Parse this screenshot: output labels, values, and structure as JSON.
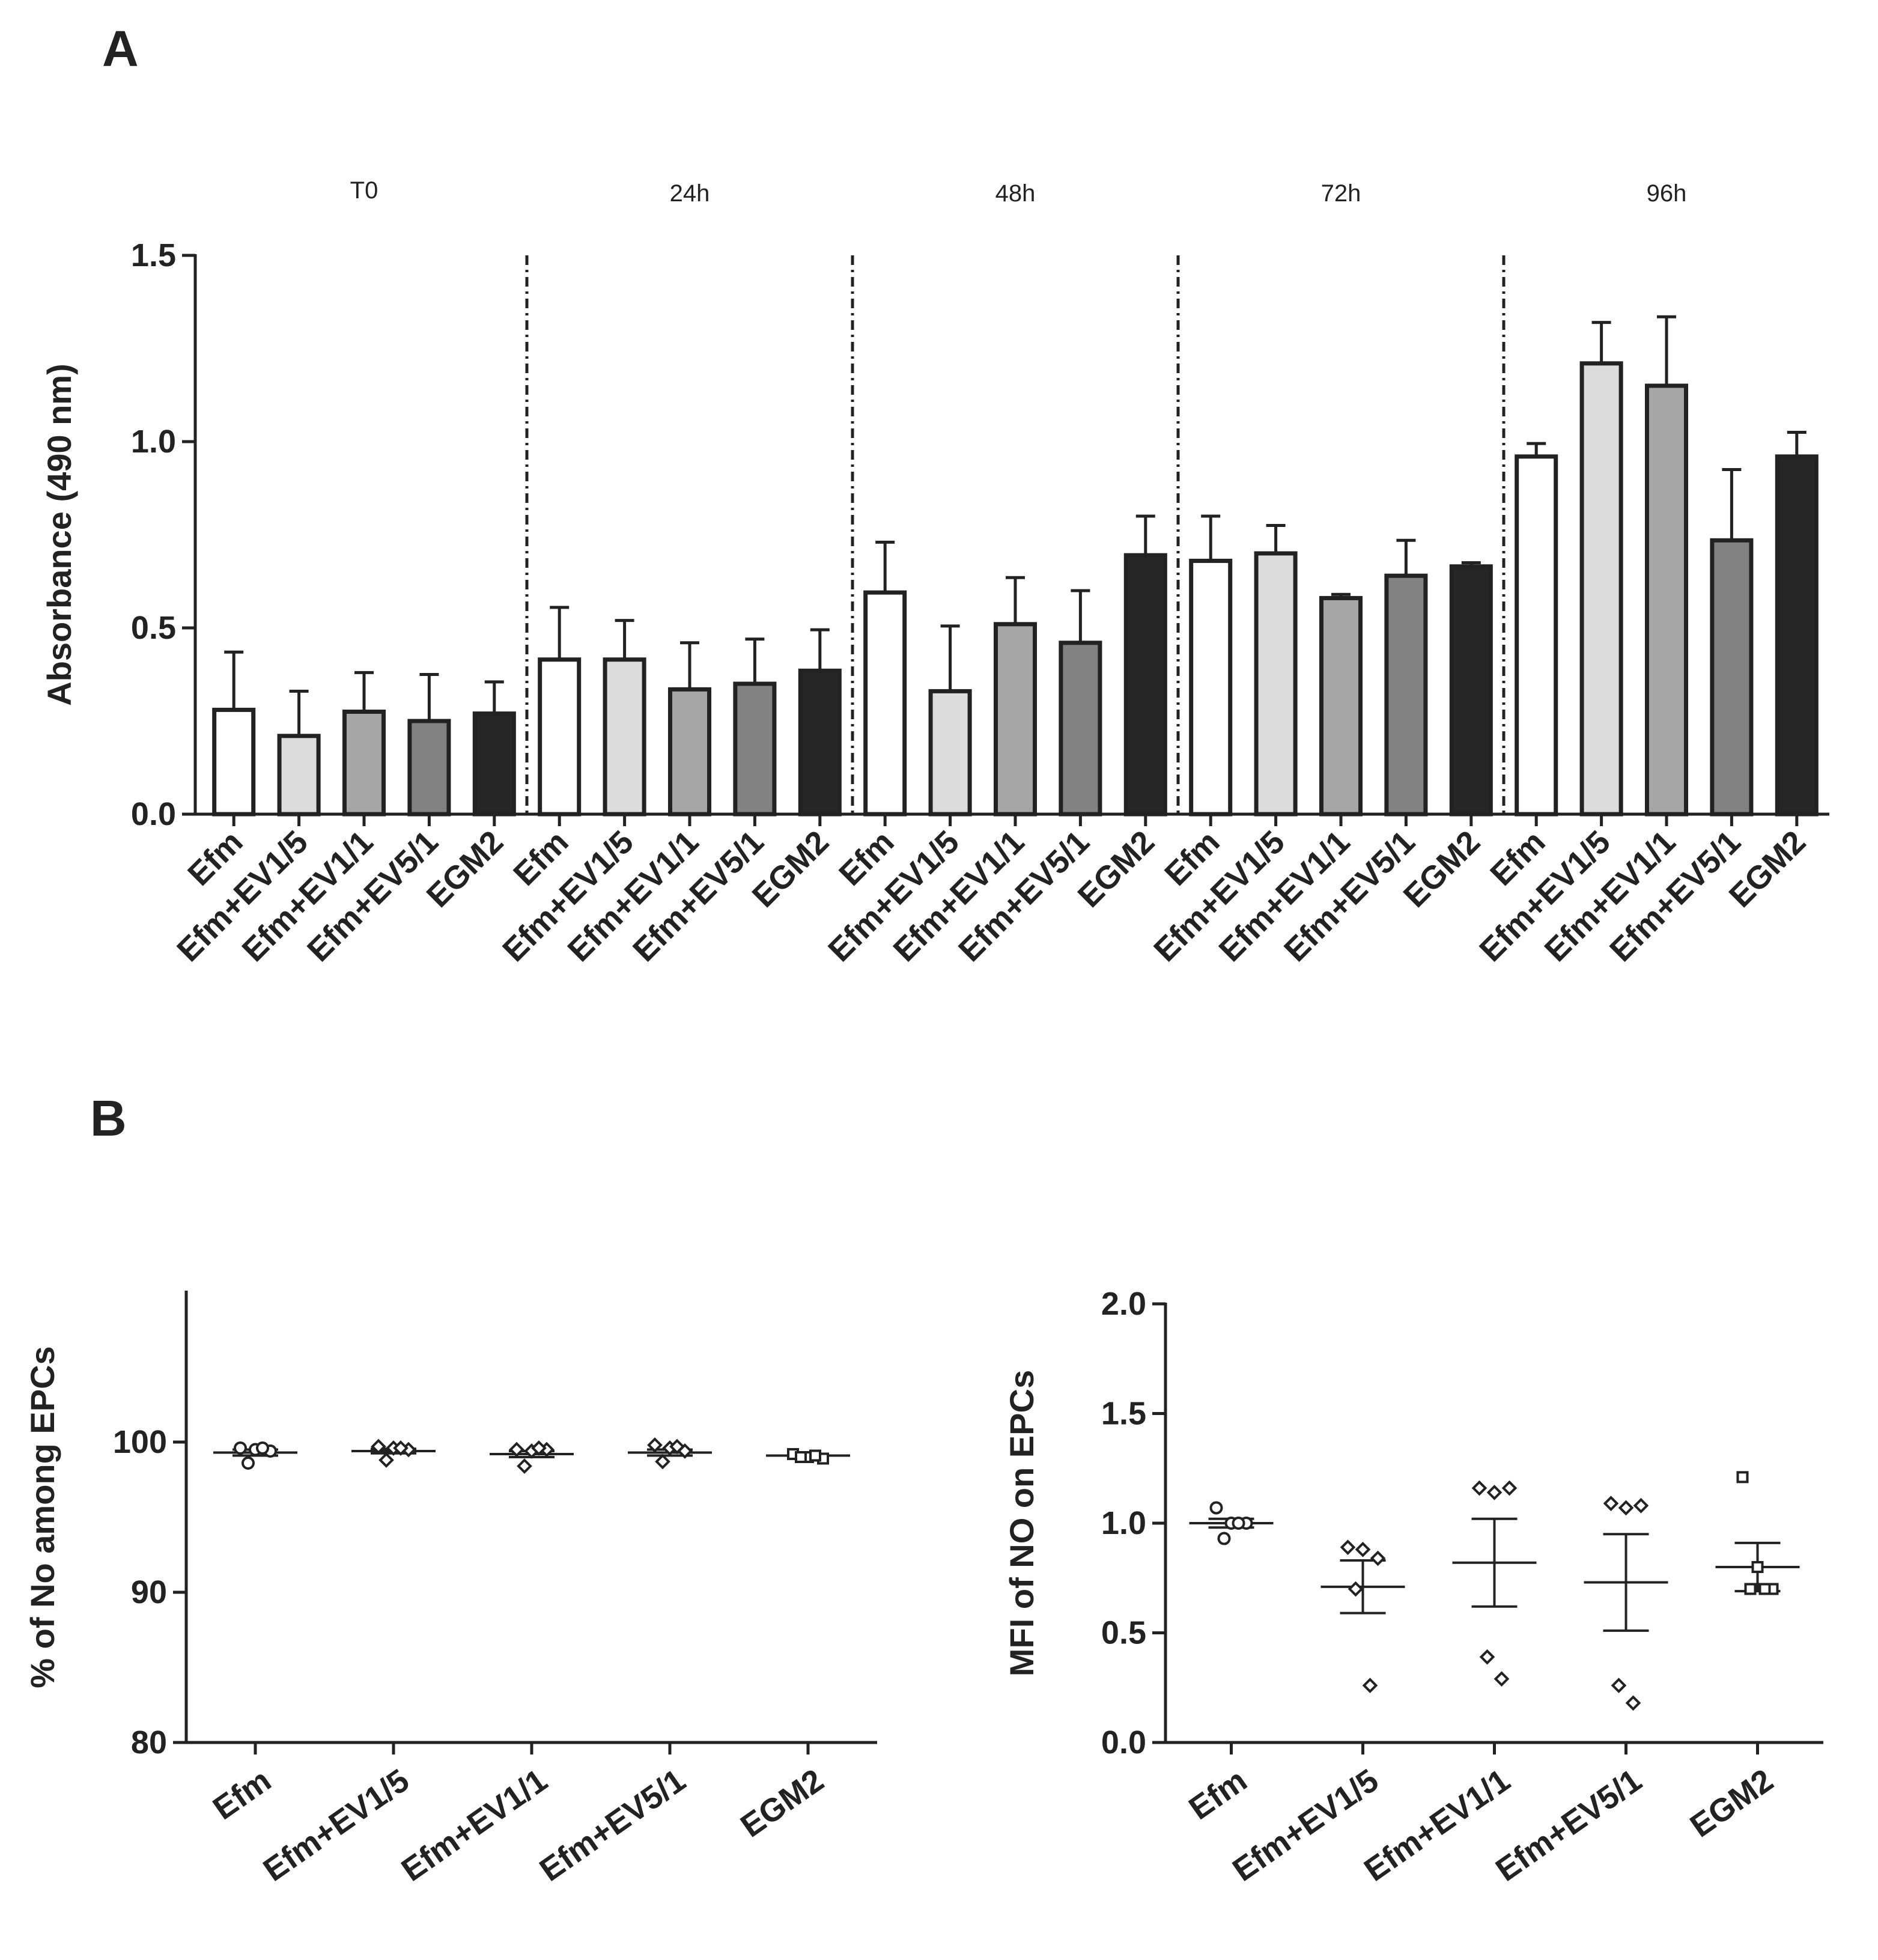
{
  "panels": {
    "a_letter": "A",
    "b_letter": "B"
  },
  "chart_data": [
    {
      "id": "A",
      "type": "bar",
      "ylabel": "Absorbance (490 nm)",
      "ylim": [
        0,
        1.5
      ],
      "yticks": [
        "0.0",
        "0.5",
        "1.0",
        "1.5"
      ],
      "groups": [
        "T0",
        "24h",
        "48h",
        "72h",
        "96h"
      ],
      "categories": [
        "Efm",
        "Efm+EV1/5",
        "Efm+EV1/1",
        "Efm+EV5/1",
        "EGM2"
      ],
      "colors": [
        "#ffffff",
        "#dcdcdc",
        "#a6a6a6",
        "#828282",
        "#262626"
      ],
      "values": [
        [
          0.28,
          0.21,
          0.275,
          0.25,
          0.27
        ],
        [
          0.415,
          0.415,
          0.335,
          0.35,
          0.385
        ],
        [
          0.595,
          0.33,
          0.51,
          0.46,
          0.695
        ],
        [
          0.68,
          0.7,
          0.58,
          0.64,
          0.665
        ],
        [
          0.96,
          1.21,
          1.15,
          0.735,
          0.96
        ]
      ],
      "errors": [
        [
          0.155,
          0.12,
          0.105,
          0.125,
          0.085
        ],
        [
          0.14,
          0.105,
          0.125,
          0.12,
          0.11
        ],
        [
          0.135,
          0.175,
          0.125,
          0.14,
          0.105
        ],
        [
          0.12,
          0.075,
          0.01,
          0.095,
          0.01
        ],
        [
          0.035,
          0.11,
          0.185,
          0.19,
          0.065
        ]
      ]
    },
    {
      "id": "B-left",
      "type": "scatter",
      "ylabel": "% of No among EPCs",
      "ylim": [
        80,
        110
      ],
      "yticks": [
        "80",
        "90",
        "100"
      ],
      "categories": [
        "Efm",
        "Efm+EV1/5",
        "Efm+EV1/1",
        "Efm+EV5/1",
        "EGM2"
      ],
      "markers": [
        "circle",
        "diamond",
        "diamond",
        "diamond",
        "square"
      ],
      "points": [
        [
          99.6,
          99.5,
          99.4,
          98.6,
          99.6
        ],
        [
          99.7,
          99.6,
          99.5,
          98.8,
          99.6
        ],
        [
          99.5,
          99.4,
          99.5,
          98.4,
          99.6
        ],
        [
          99.8,
          99.6,
          99.4,
          98.7,
          99.7
        ],
        [
          99.2,
          99.0,
          98.9,
          99.0,
          99.1
        ]
      ],
      "means": [
        99.3,
        99.4,
        99.2,
        99.3,
        99.1
      ],
      "sem": [
        0.2,
        0.15,
        0.2,
        0.2,
        0.05
      ]
    },
    {
      "id": "B-right",
      "type": "scatter",
      "ylabel": "MFI of NO on EPCs",
      "ylim": [
        0,
        2.0
      ],
      "yticks": [
        "0.0",
        "0.5",
        "1.0",
        "1.5",
        "2.0"
      ],
      "categories": [
        "Efm",
        "Efm+EV1/5",
        "Efm+EV1/1",
        "Efm+EV5/1",
        "EGM2"
      ],
      "markers": [
        "circle",
        "diamond",
        "diamond",
        "diamond",
        "square"
      ],
      "points": [
        [
          1.07,
          1.0,
          1.0,
          0.93,
          1.0
        ],
        [
          0.89,
          0.88,
          0.84,
          0.7,
          0.26
        ],
        [
          1.16,
          1.14,
          1.16,
          0.39,
          0.29
        ],
        [
          1.09,
          1.07,
          1.08,
          0.26,
          0.18
        ],
        [
          1.21,
          0.8,
          0.7,
          0.7,
          0.7
        ]
      ],
      "means": [
        1.0,
        0.71,
        0.82,
        0.73,
        0.8
      ],
      "sem": [
        0.02,
        0.12,
        0.2,
        0.22,
        0.11
      ]
    }
  ]
}
